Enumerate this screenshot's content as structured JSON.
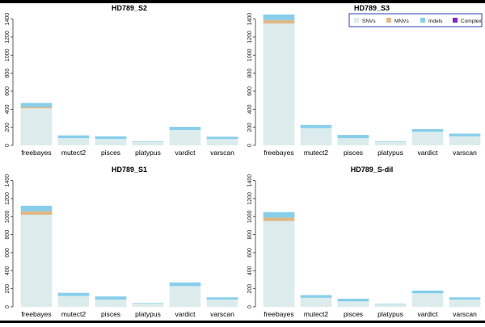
{
  "colors": {
    "snvs": "#dcecec",
    "mnvs": "#deb887",
    "indels": "#87ceeb",
    "complex": "#7b2cbf",
    "axis": "#333333",
    "legend_border": "#2f3fb0"
  },
  "legend": {
    "position": "top-right of second panel",
    "entries": [
      {
        "key": "snvs",
        "label": "SNVs"
      },
      {
        "key": "mnvs",
        "label": "MNVs"
      },
      {
        "key": "indels",
        "label": "Indels"
      },
      {
        "key": "complex",
        "label": "Complex"
      }
    ]
  },
  "chart_data": [
    {
      "type": "bar",
      "stacked": true,
      "title": "HD789_S2",
      "categories": [
        "freebayes",
        "mutect2",
        "pisces",
        "platypus",
        "vardict",
        "varscan"
      ],
      "series": [
        {
          "name": "SNVs",
          "key": "snvs",
          "values": [
            410,
            80,
            70,
            40,
            170,
            70
          ]
        },
        {
          "name": "MNVs",
          "key": "mnvs",
          "values": [
            15,
            0,
            0,
            0,
            0,
            0
          ]
        },
        {
          "name": "Indels",
          "key": "indels",
          "values": [
            45,
            30,
            30,
            5,
            35,
            25
          ]
        },
        {
          "name": "Complex",
          "key": "complex",
          "values": [
            0,
            0,
            0,
            0,
            0,
            0
          ]
        }
      ],
      "yticks": [
        0,
        200,
        400,
        600,
        800,
        1000,
        1200,
        1400
      ],
      "ylim": [
        0,
        1450
      ],
      "xlabel": "",
      "ylabel": ""
    },
    {
      "type": "bar",
      "stacked": true,
      "title": "HD789_S3",
      "categories": [
        "freebayes",
        "mutect2",
        "pisces",
        "platypus",
        "vardict",
        "varscan"
      ],
      "series": [
        {
          "name": "SNVs",
          "key": "snvs",
          "values": [
            1350,
            190,
            80,
            40,
            150,
            100
          ]
        },
        {
          "name": "MNVs",
          "key": "mnvs",
          "values": [
            40,
            0,
            0,
            0,
            0,
            0
          ]
        },
        {
          "name": "Indels",
          "key": "indels",
          "values": [
            60,
            35,
            35,
            5,
            30,
            30
          ]
        },
        {
          "name": "Complex",
          "key": "complex",
          "values": [
            0,
            0,
            0,
            0,
            0,
            0
          ]
        }
      ],
      "yticks": [
        0,
        200,
        400,
        600,
        800,
        1000,
        1200,
        1400
      ],
      "ylim": [
        0,
        1450
      ],
      "xlabel": "",
      "ylabel": ""
    },
    {
      "type": "bar",
      "stacked": true,
      "title": "HD789_S1",
      "categories": [
        "freebayes",
        "mutect2",
        "pisces",
        "platypus",
        "vardict",
        "varscan"
      ],
      "series": [
        {
          "name": "SNVs",
          "key": "snvs",
          "values": [
            1020,
            120,
            80,
            40,
            230,
            80
          ]
        },
        {
          "name": "MNVs",
          "key": "mnvs",
          "values": [
            40,
            0,
            0,
            0,
            0,
            0
          ]
        },
        {
          "name": "Indels",
          "key": "indels",
          "values": [
            60,
            35,
            35,
            5,
            40,
            25
          ]
        },
        {
          "name": "Complex",
          "key": "complex",
          "values": [
            0,
            0,
            0,
            0,
            0,
            0
          ]
        }
      ],
      "yticks": [
        0,
        200,
        400,
        600,
        800,
        1000,
        1200,
        1400
      ],
      "ylim": [
        0,
        1450
      ],
      "xlabel": "",
      "ylabel": ""
    },
    {
      "type": "bar",
      "stacked": true,
      "title": "HD789_S-dil",
      "categories": [
        "freebayes",
        "mutect2",
        "pisces",
        "platypus",
        "vardict",
        "varscan"
      ],
      "series": [
        {
          "name": "SNVs",
          "key": "snvs",
          "values": [
            950,
            100,
            60,
            30,
            150,
            80
          ]
        },
        {
          "name": "MNVs",
          "key": "mnvs",
          "values": [
            40,
            0,
            0,
            0,
            0,
            0
          ]
        },
        {
          "name": "Indels",
          "key": "indels",
          "values": [
            60,
            30,
            30,
            5,
            30,
            25
          ]
        },
        {
          "name": "Complex",
          "key": "complex",
          "values": [
            0,
            0,
            0,
            0,
            0,
            0
          ]
        }
      ],
      "yticks": [
        0,
        200,
        400,
        600,
        800,
        1000,
        1200,
        1400
      ],
      "ylim": [
        0,
        1450
      ],
      "xlabel": "",
      "ylabel": ""
    }
  ]
}
